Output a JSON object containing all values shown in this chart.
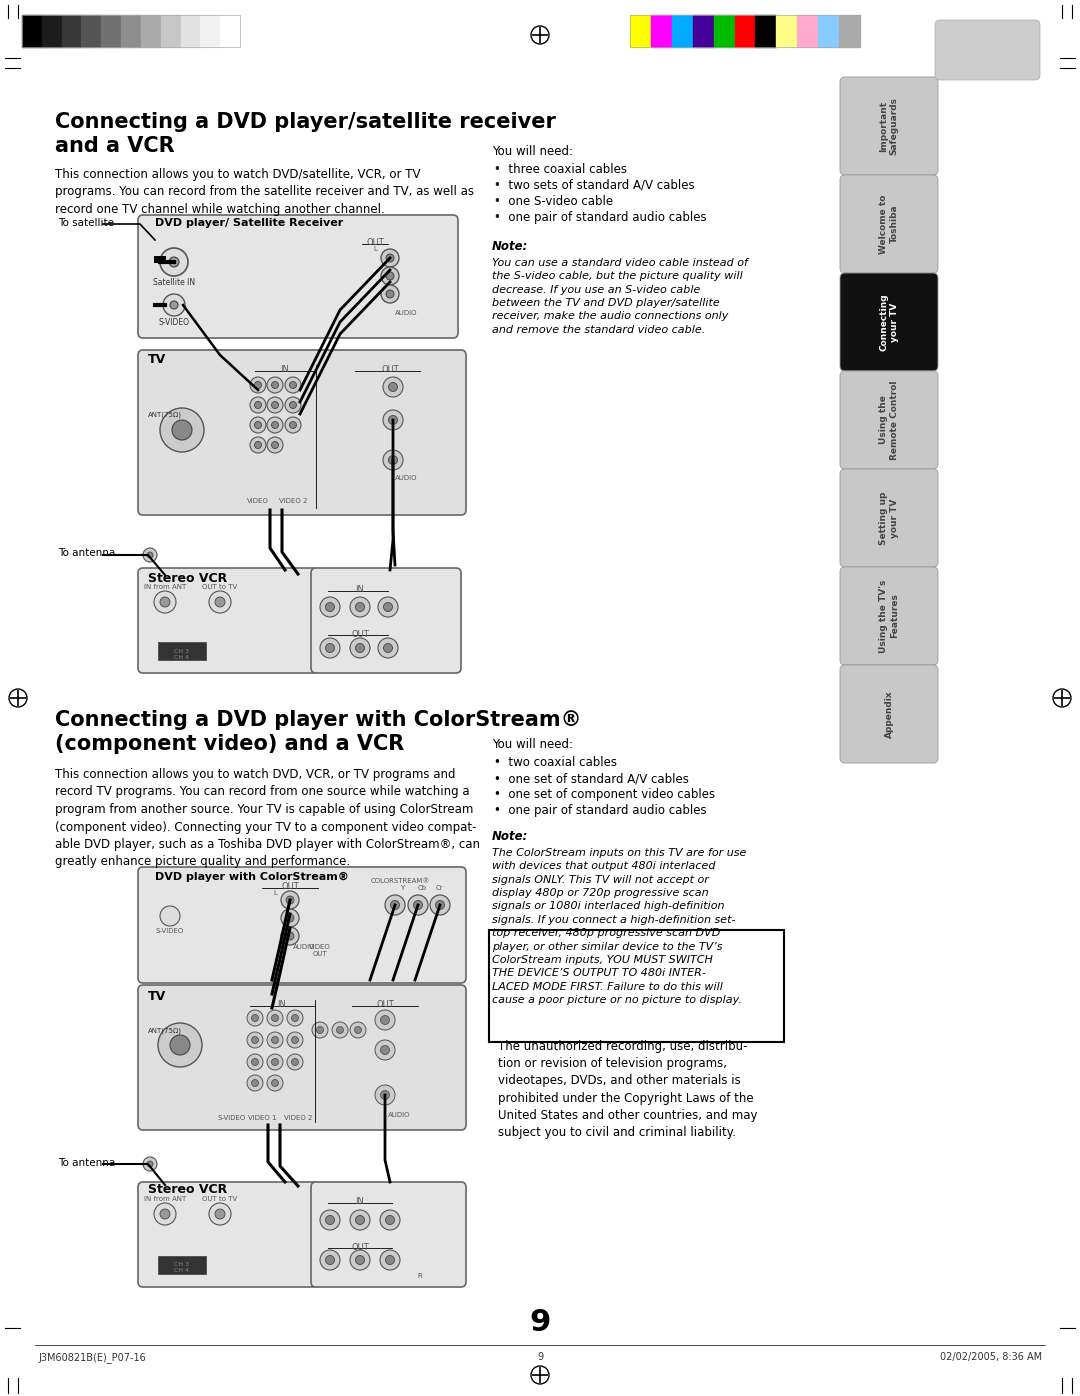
{
  "page_bg": "#ffffff",
  "title1": "Connecting a DVD player/satellite receiver\nand a VCR",
  "body1": "This connection allows you to watch DVD/satellite, VCR, or TV\nprograms. You can record from the satellite receiver and TV, as well as\nrecord one TV channel while watching another channel.",
  "you_will_need_1_title": "You will need:",
  "you_will_need_1": [
    "three coaxial cables",
    "two sets of standard A/V cables",
    "one S-video cable",
    "one pair of standard audio cables"
  ],
  "note1_title": "Note:",
  "note1_body": "You can use a standard video cable instead of\nthe S-video cable, but the picture quality will\ndecrease. If you use an S-video cable\nbetween the TV and DVD player/satellite\nreceiver, make the audio connections only\nand remove the standard video cable.",
  "title2": "Connecting a DVD player with ColorStream®\n(component video) and a VCR",
  "body2": "This connection allows you to watch DVD, VCR, or TV programs and\nrecord TV programs. You can record from one source while watching a\nprogram from another source. Your TV is capable of using ColorStream\n(component video). Connecting your TV to a component video compat-\nable DVD player, such as a Toshiba DVD player with ColorStream®, can\ngreatly enhance picture quality and performance.",
  "you_will_need_2_title": "You will need:",
  "you_will_need_2": [
    "two coaxial cables",
    "one set of standard A/V cables",
    "one set of component video cables",
    "one pair of standard audio cables"
  ],
  "note2_title": "Note:",
  "note2_body": "The ColorStream inputs on this TV are for use\nwith devices that output 480i interlaced\nsignals ONLY. This TV will not accept or\ndisplay 480p or 720p progressive scan\nsignals or 1080i interlaced high-definition\nsignals. If you connect a high-definition set-\ntop receiver, 480p progressive scan DVD\nplayer, or other similar device to the TV’s\nColorStream inputs, YOU MUST SWITCH\nTHE DEVICE’S OUTPUT TO 480i INTER-\nLACED MODE FIRST. Failure to do this will\ncause a poor picture or no picture to display.",
  "copyright_box": "The unauthorized recording, use, distribu-\ntion or revision of television programs,\nvideotapes, DVDs, and other materials is\nprohibited under the Copyright Laws of the\nUnited States and other countries, and may\nsubject you to civil and criminal liability.",
  "page_number": "9",
  "footer_left": "J3M60821B(E)_P07-16",
  "footer_page": "9",
  "footer_right": "02/02/2005, 8:36 AM",
  "sidebar_tabs": [
    {
      "label": "Important\nSafeguards",
      "active": false
    },
    {
      "label": "Welcome to\nToshiba",
      "active": false
    },
    {
      "label": "Connecting\nyour TV",
      "active": true
    },
    {
      "label": "Using the\nRemote Control",
      "active": false
    },
    {
      "label": "Setting up\nyour TV",
      "active": false
    },
    {
      "label": "Using the TV's\nFeatures",
      "active": false
    },
    {
      "label": "Appendix",
      "active": false
    }
  ],
  "grayscale_colors": [
    "#000000",
    "#1c1c1c",
    "#383838",
    "#555555",
    "#717171",
    "#8d8d8d",
    "#aaaaaa",
    "#c6c6c6",
    "#e2e2e2",
    "#f0f0f0",
    "#ffffff"
  ],
  "color_bars": [
    "#ffff00",
    "#ff00ff",
    "#00aaff",
    "#440099",
    "#00bb00",
    "#ff0000",
    "#000000",
    "#ffff88",
    "#ffaacc",
    "#88ccff",
    "#aaaaaa"
  ]
}
